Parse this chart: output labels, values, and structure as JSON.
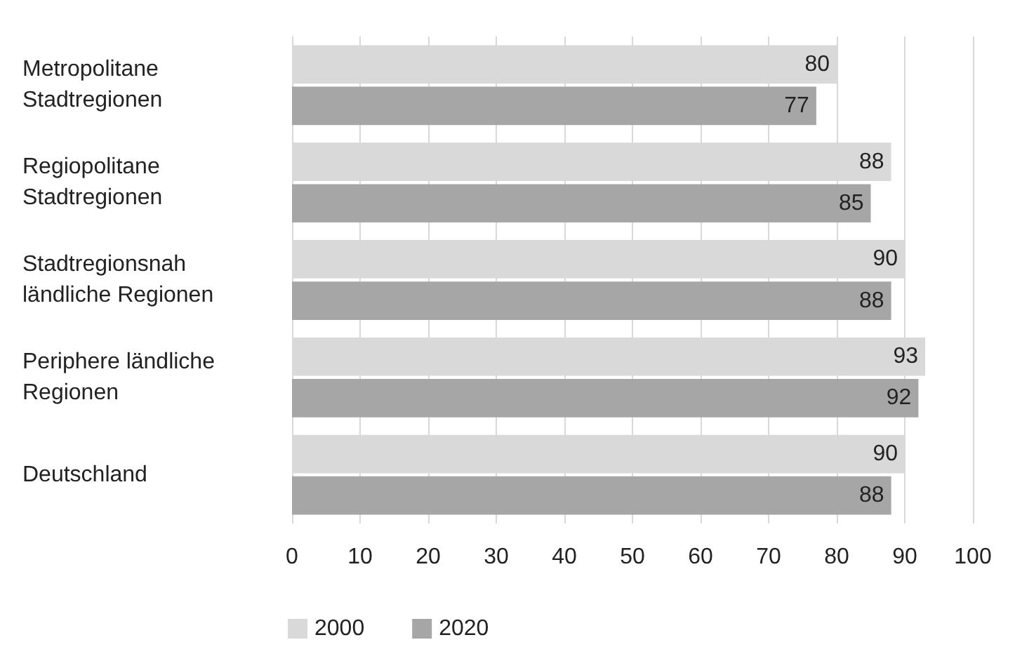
{
  "chart_data": {
    "type": "bar",
    "orientation": "horizontal",
    "categories": [
      "Metropolitane Stadtregionen",
      "Regiopolitane Stadtregionen",
      "Stadtregionsnah ländliche Regionen",
      "Periphere ländliche Regionen",
      "Deutschland"
    ],
    "series": [
      {
        "name": "2000",
        "color": "#d9d9d9",
        "values": [
          80,
          88,
          90,
          93,
          90
        ]
      },
      {
        "name": "2020",
        "color": "#a6a6a6",
        "values": [
          77,
          85,
          88,
          92,
          88
        ]
      }
    ],
    "xlim": [
      0,
      100
    ],
    "xticks": [
      0,
      10,
      20,
      30,
      40,
      50,
      60,
      70,
      80,
      90,
      100
    ],
    "grid": "x",
    "legend": "bottom left",
    "data_labels": true
  }
}
